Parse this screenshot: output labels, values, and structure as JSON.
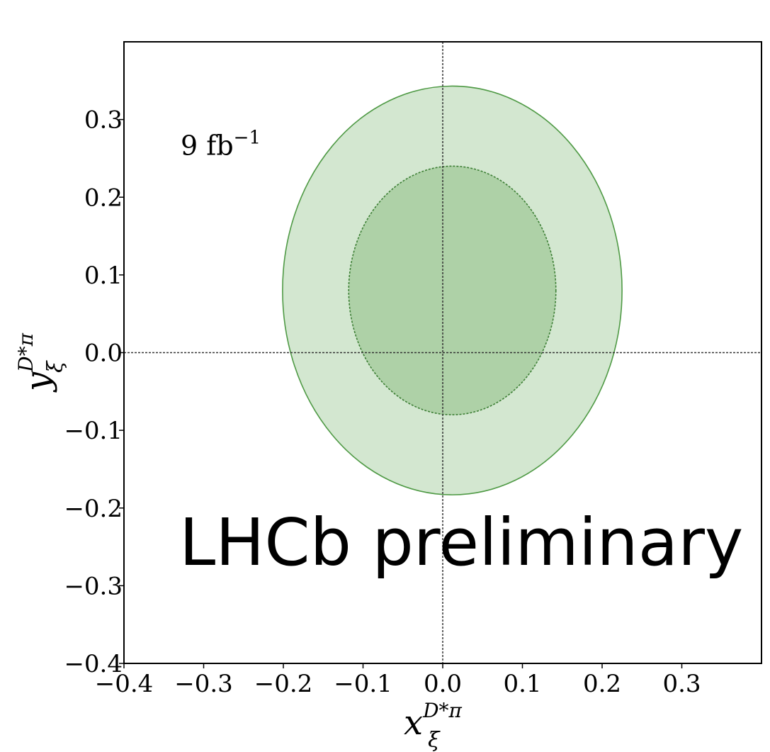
{
  "chart_data": {
    "type": "contour",
    "xlabel": {
      "base": "x",
      "sub": "ξ",
      "sup": "D*π"
    },
    "ylabel": {
      "base": "y",
      "sub": "ξ",
      "sup": "D*π"
    },
    "xlim": [
      -0.4,
      0.4
    ],
    "ylim": [
      -0.4,
      0.4
    ],
    "xticks": [
      -0.4,
      -0.3,
      -0.2,
      -0.1,
      0.0,
      0.1,
      0.2,
      0.3
    ],
    "xtick_labels": [
      "−0.4",
      "−0.3",
      "−0.2",
      "−0.1",
      "0.0",
      "0.1",
      "0.2",
      "0.3"
    ],
    "yticks": [
      -0.4,
      -0.3,
      -0.2,
      -0.1,
      0.0,
      0.1,
      0.2,
      0.3
    ],
    "ytick_labels": [
      "−0.4",
      "−0.3",
      "−0.2",
      "−0.1",
      "0.0",
      "0.1",
      "0.2",
      "0.3"
    ],
    "reference_lines": {
      "x": 0.0,
      "y": 0.0,
      "style": "dotted"
    },
    "regions": [
      {
        "cx": 0.012,
        "cy": 0.08,
        "rx": 0.213,
        "ry": 0.263,
        "fill": "#d3e7d0",
        "stroke": "#4f9a45",
        "dash": false
      },
      {
        "cx": 0.012,
        "cy": 0.08,
        "rx": 0.13,
        "ry": 0.16,
        "fill": "#aed1a7",
        "stroke": "#3d7f35",
        "dash": true
      }
    ],
    "annotation": {
      "base": "9 fb",
      "sup": "−1",
      "x": -0.32,
      "y": 0.25
    },
    "grid": false
  },
  "watermark": {
    "text": "LHCb preliminary"
  }
}
